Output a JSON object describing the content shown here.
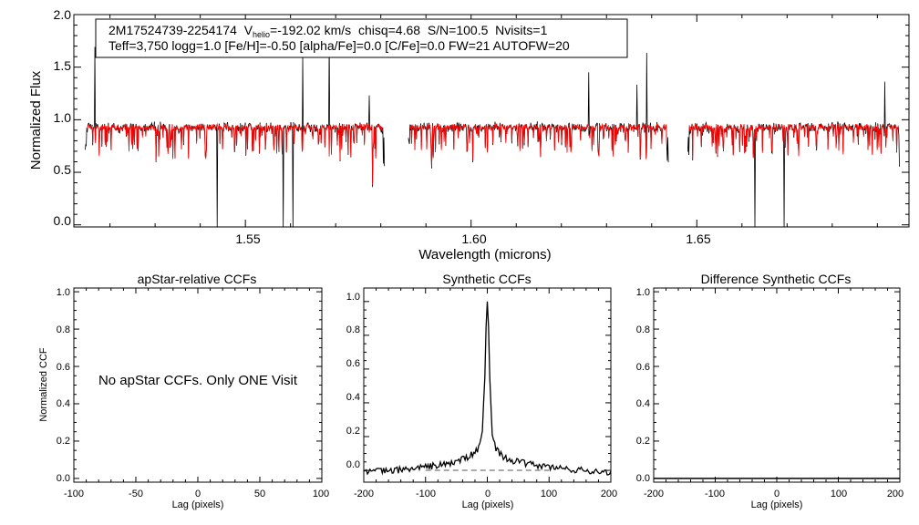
{
  "colors": {
    "spectrum": "#000000",
    "model": "#ff0000",
    "axes": "#000000",
    "background": "#ffffff"
  },
  "chart_data": [
    {
      "id": "spectrum",
      "type": "line",
      "xlabel": "Wavelength (microns)",
      "ylabel": "Normalized Flux",
      "xlim": [
        1.512,
        1.697
      ],
      "ylim": [
        -0.02,
        2.0
      ],
      "xticks": [
        1.55,
        1.6,
        1.65
      ],
      "xtick_labels": [
        "1.55",
        "1.60",
        "1.65"
      ],
      "yticks": [
        0.0,
        0.5,
        1.0,
        1.5,
        2.0
      ],
      "ytick_labels": [
        "0.0",
        "0.5",
        "1.0",
        "1.5",
        "2.0"
      ],
      "chip_ranges": [
        [
          1.5145,
          1.5808
        ],
        [
          1.5861,
          1.6437
        ],
        [
          1.648,
          1.695
        ]
      ],
      "continuum_level": 0.93,
      "info_box": {
        "line1": {
          "star": "2M17524739-2254174",
          "v_prefix": "V",
          "v_subscript": "helio",
          "v_value": "=-192.02 km/s",
          "chisq": "chisq=4.68",
          "sn": "S/N=100.5",
          "nvisits": "Nvisits=1"
        },
        "line2": "Teff=3,750 logg=1.0 [Fe/H]=-0.50 [alpha/Fe]=0.0 [C/Fe]=0.0 FW=21 AUTOFW=20"
      },
      "series": [
        {
          "name": "Observed spectrum",
          "color": "#000000"
        },
        {
          "name": "Best-fit synthetic",
          "color": "#ff0000"
        }
      ]
    },
    {
      "id": "apstar_ccf",
      "type": "line",
      "title": "apStar-relative CCFs",
      "xlabel": "Lag (pixels)",
      "ylabel": "Normalized CCF",
      "xlim": [
        -100,
        100
      ],
      "ylim": [
        -0.02,
        1.02
      ],
      "xticks": [
        -100,
        -50,
        0,
        50,
        100
      ],
      "xtick_labels": [
        "-100",
        "-50",
        "0",
        "50",
        "100"
      ],
      "yticks": [
        0.0,
        0.2,
        0.4,
        0.6,
        0.8,
        1.0
      ],
      "ytick_labels": [
        "0.0",
        "0.2",
        "0.4",
        "0.6",
        "0.8",
        "1.0"
      ],
      "annotation": "No apStar CCFs.  Only ONE Visit"
    },
    {
      "id": "synthetic_ccf",
      "type": "line",
      "title": "Synthetic CCFs",
      "xlabel": "Lag (pixels)",
      "xlim": [
        -200,
        200
      ],
      "ylim": [
        -0.07,
        1.08
      ],
      "xticks": [
        -200,
        -100,
        0,
        100,
        200
      ],
      "xtick_labels": [
        "-200",
        "-100",
        "0",
        "100",
        "200"
      ],
      "yticks": [
        0.0,
        0.2,
        0.4,
        0.6,
        0.8,
        1.0
      ],
      "ytick_labels": [
        "0.0",
        "0.2",
        "0.4",
        "0.6",
        "0.8",
        "1.0"
      ],
      "peak_lag": 0,
      "peak_value": 1.0,
      "baseline": 0.0,
      "series": [
        {
          "name": "CCF",
          "style": "solid",
          "x": [
            -200,
            -150,
            -100,
            -60,
            -30,
            -15,
            -8,
            -4,
            -2,
            0,
            2,
            4,
            8,
            15,
            30,
            60,
            100,
            150,
            200
          ],
          "values": [
            -0.01,
            0.0,
            0.02,
            0.04,
            0.08,
            0.12,
            0.22,
            0.55,
            0.85,
            1.0,
            0.85,
            0.55,
            0.22,
            0.12,
            0.07,
            0.04,
            0.02,
            0.0,
            -0.01
          ]
        },
        {
          "name": "Zero level",
          "style": "dashed",
          "x": [
            -100,
            100
          ],
          "values": [
            0.0,
            0.0
          ]
        }
      ]
    },
    {
      "id": "difference_ccf",
      "type": "line",
      "title": "Difference Synthetic CCFs",
      "xlabel": "Lag (pixels)",
      "xlim": [
        -200,
        200
      ],
      "ylim": [
        -0.02,
        1.02
      ],
      "xticks": [
        -200,
        -100,
        0,
        100,
        200
      ],
      "xtick_labels": [
        "-200",
        "-100",
        "0",
        "100",
        "200"
      ],
      "yticks": [
        0.0,
        0.2,
        0.4,
        0.6,
        0.8,
        1.0
      ],
      "ytick_labels": [
        "0.0",
        "0.2",
        "0.4",
        "0.6",
        "0.8",
        "1.0"
      ],
      "series": [
        {
          "name": "Difference CCF",
          "x": [
            -200,
            200
          ],
          "values": [
            0.0,
            0.0
          ]
        }
      ]
    }
  ]
}
